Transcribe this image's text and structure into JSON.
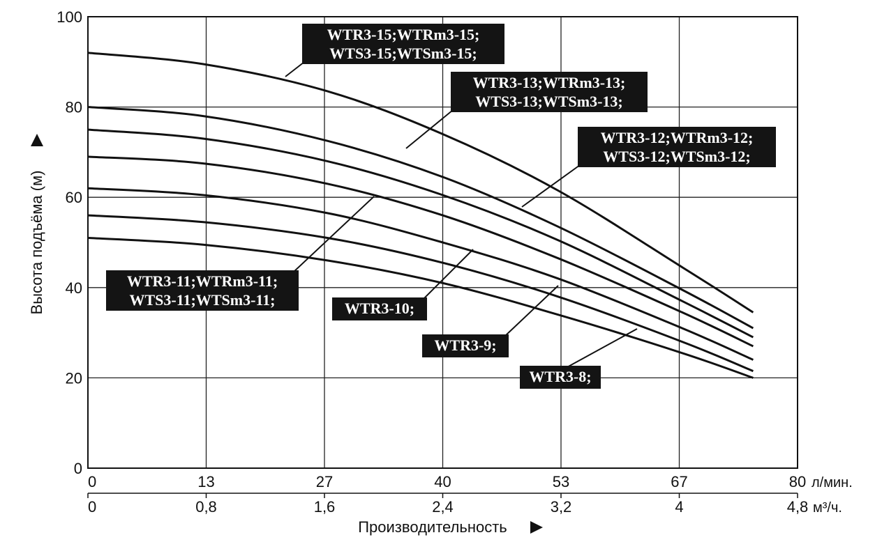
{
  "chart_data": {
    "type": "line",
    "ylabel": "Высота подъёма (м)",
    "xlabel": "Производительность",
    "ylim": [
      0,
      100
    ],
    "xlim": [
      0,
      80
    ],
    "y_ticks": [
      "0",
      "20",
      "40",
      "60",
      "80",
      "100"
    ],
    "x_ticks_primary": [
      "0",
      "13",
      "27",
      "40",
      "53",
      "67",
      "80"
    ],
    "x_unit_primary": "л/мин.",
    "x_ticks_secondary": [
      "0",
      "0,8",
      "1,6",
      "2,4",
      "3,2",
      "4",
      "4,8"
    ],
    "x_unit_secondary": "м³/ч.",
    "grid": true,
    "series": [
      {
        "label_lines": [
          "WTR3-15;WTRm3-15;",
          "WTS3-15;WTSm3-15;"
        ],
        "x": [
          0,
          13,
          27,
          40,
          53,
          67,
          75
        ],
        "y": [
          92,
          89.5,
          83.5,
          74,
          61.5,
          44.5,
          34.5
        ]
      },
      {
        "label_lines": [
          "WTR3-13;WTRm3-13;",
          "WTS3-13;WTSm3-13;"
        ],
        "x": [
          0,
          13,
          27,
          40,
          53,
          67,
          75
        ],
        "y": [
          80,
          78,
          72.5,
          64.5,
          53.5,
          39.5,
          31
        ]
      },
      {
        "label_lines": [
          "WTR3-12;WTRm3-12;",
          "WTS3-12;WTSm3-12;"
        ],
        "x": [
          0,
          13,
          27,
          40,
          53,
          67,
          75
        ],
        "y": [
          75,
          73,
          68,
          60.5,
          50.5,
          37,
          29
        ]
      },
      {
        "label_lines": [
          "WTR3-11;WTRm3-11;",
          "WTS3-11;WTSm3-11;"
        ],
        "x": [
          0,
          13,
          27,
          40,
          53,
          67,
          75
        ],
        "y": [
          69,
          67.5,
          63,
          56,
          46.5,
          34.5,
          27
        ]
      },
      {
        "label_lines": [
          "WTR3-10;"
        ],
        "x": [
          0,
          13,
          27,
          40,
          53,
          67,
          75
        ],
        "y": [
          62,
          60.5,
          56.5,
          50,
          42,
          31,
          24
        ]
      },
      {
        "label_lines": [
          "WTR3-9;"
        ],
        "x": [
          0,
          13,
          27,
          40,
          53,
          67,
          75
        ],
        "y": [
          56,
          54.5,
          51,
          45.5,
          38,
          28,
          21.5
        ]
      },
      {
        "label_lines": [
          "WTR3-8;"
        ],
        "x": [
          0,
          13,
          27,
          40,
          53,
          67,
          75
        ],
        "y": [
          51,
          49.5,
          46,
          41,
          34,
          25.5,
          20
        ]
      }
    ]
  }
}
